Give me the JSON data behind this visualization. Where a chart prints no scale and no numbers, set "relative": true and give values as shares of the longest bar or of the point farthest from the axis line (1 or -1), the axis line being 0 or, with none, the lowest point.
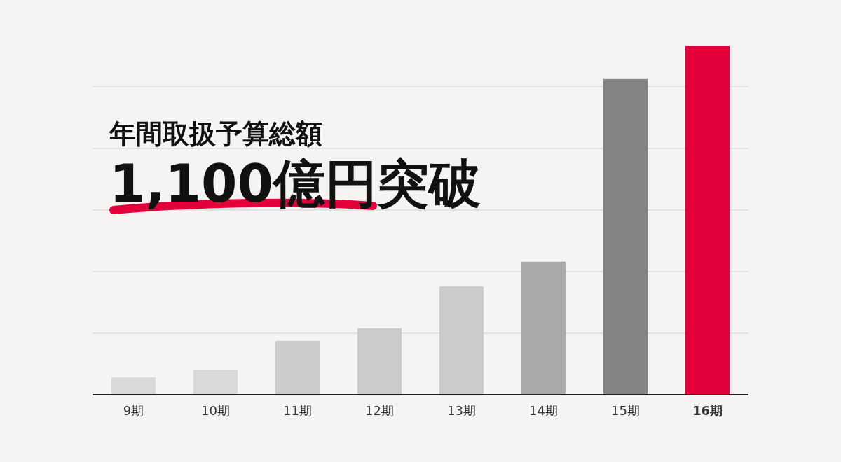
{
  "chart_data": {
    "type": "bar",
    "title": "年間取扱予算総額",
    "subtitle": "1,100億円突破",
    "relative": true,
    "grid": true,
    "categories": [
      "9期",
      "10期",
      "11期",
      "12期",
      "13期",
      "14期",
      "15期",
      "16期"
    ],
    "values": [
      0.05,
      0.072,
      0.155,
      0.191,
      0.311,
      0.382,
      0.906,
      1
    ],
    "colors": [
      "#d9d9d8",
      "#d9d9d8",
      "#cccccc",
      "#cccccc",
      "#cccccc",
      "#aaaaaa",
      "#838383",
      "#e4003a"
    ]
  }
}
